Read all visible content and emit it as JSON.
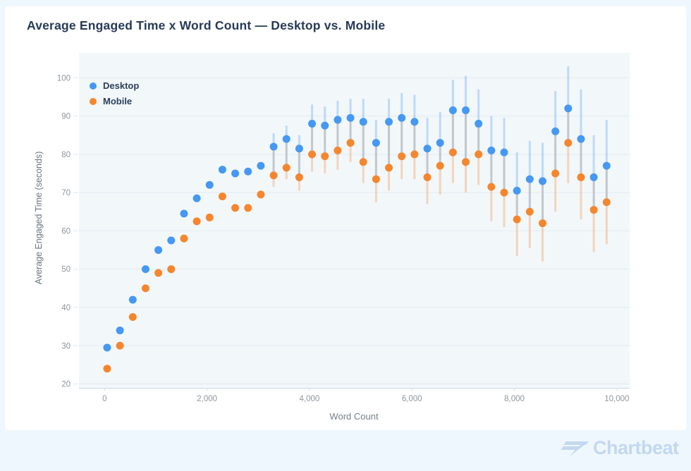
{
  "title": "Average Engaged Time x Word Count — Desktop vs. Mobile",
  "footer": {
    "brand": "Chartbeat",
    "brand_color": "#c2d8f0"
  },
  "chart_data": {
    "type": "scatter",
    "title": "Average Engaged Time x Word Count — Desktop vs. Mobile",
    "xlabel": "Word Count",
    "ylabel": "Average Engaged Time (seconds)",
    "xlim": [
      -500,
      10250
    ],
    "ylim": [
      19,
      106.5
    ],
    "grid": "horizontal",
    "legend_position": "top-left-inside",
    "plot_background": "#f2f7fa",
    "gridline_color": "#e4edf4",
    "axis_line_color": "#d6e1ea",
    "tick_label_color": "#8d959e",
    "errorbar_overlap_color": "#b8bec6",
    "x_ticks": [
      {
        "v": 0,
        "label": "0"
      },
      {
        "v": 2000,
        "label": "2,000"
      },
      {
        "v": 4000,
        "label": "4,000"
      },
      {
        "v": 6000,
        "label": "6,000"
      },
      {
        "v": 8000,
        "label": "8,000"
      },
      {
        "v": 10000,
        "label": "10,000"
      }
    ],
    "y_ticks": [
      20,
      30,
      40,
      50,
      60,
      70,
      80,
      90,
      100
    ],
    "x": [
      50,
      300,
      550,
      800,
      1050,
      1300,
      1550,
      1800,
      2050,
      2300,
      2550,
      2800,
      3050,
      3300,
      3550,
      3800,
      4050,
      4300,
      4550,
      4800,
      5050,
      5300,
      5550,
      5800,
      6050,
      6300,
      6550,
      6800,
      7050,
      7300,
      7550,
      7800,
      8050,
      8300,
      8550,
      8800,
      9050,
      9300,
      9550,
      9800
    ],
    "series": [
      {
        "name": "Desktop",
        "color": "#4598f4",
        "errorbar_color": "rgba(69,152,244,0.30)",
        "values": [
          29.5,
          34,
          42,
          50,
          55,
          57.5,
          64.5,
          68.5,
          72,
          76,
          75,
          75.5,
          77,
          82,
          84,
          81.5,
          88,
          87.5,
          89,
          89.5,
          88.5,
          83,
          88.5,
          89.5,
          88.5,
          81.5,
          83,
          91.5,
          91.5,
          88,
          81,
          80.5,
          70.5,
          73.5,
          73,
          86,
          92,
          84,
          74,
          77
        ],
        "err": [
          0,
          0,
          0,
          0,
          0,
          0,
          0,
          0,
          0,
          0,
          0,
          0,
          0,
          3.5,
          3.5,
          3.5,
          5,
          5,
          5,
          5,
          6,
          6,
          6,
          6.5,
          7,
          8,
          8,
          8,
          9,
          9,
          9,
          9,
          10,
          10,
          10,
          10.5,
          11,
          13,
          11,
          12
        ]
      },
      {
        "name": "Mobile",
        "color": "#f6862d",
        "errorbar_color": "rgba(246,134,45,0.30)",
        "values": [
          24,
          30,
          37.5,
          45,
          49,
          50,
          58,
          62.5,
          63.5,
          69,
          66,
          66,
          69.5,
          74.5,
          76.5,
          74,
          80,
          79.5,
          81,
          83,
          78,
          73.5,
          76.5,
          79.5,
          80,
          74,
          77,
          80.5,
          78,
          80,
          71.5,
          70,
          63,
          65,
          62,
          75,
          83,
          74,
          65.5,
          67.5
        ],
        "err": [
          0,
          0,
          0,
          0,
          0,
          0,
          0,
          0,
          0,
          0,
          0,
          0,
          0,
          3,
          3,
          3.5,
          4.5,
          4.5,
          5,
          5,
          5.5,
          6,
          6,
          6,
          6.5,
          7,
          7.5,
          8,
          8,
          8,
          9,
          9,
          9.5,
          9.5,
          10,
          10,
          10.5,
          11,
          11,
          11
        ]
      }
    ]
  }
}
